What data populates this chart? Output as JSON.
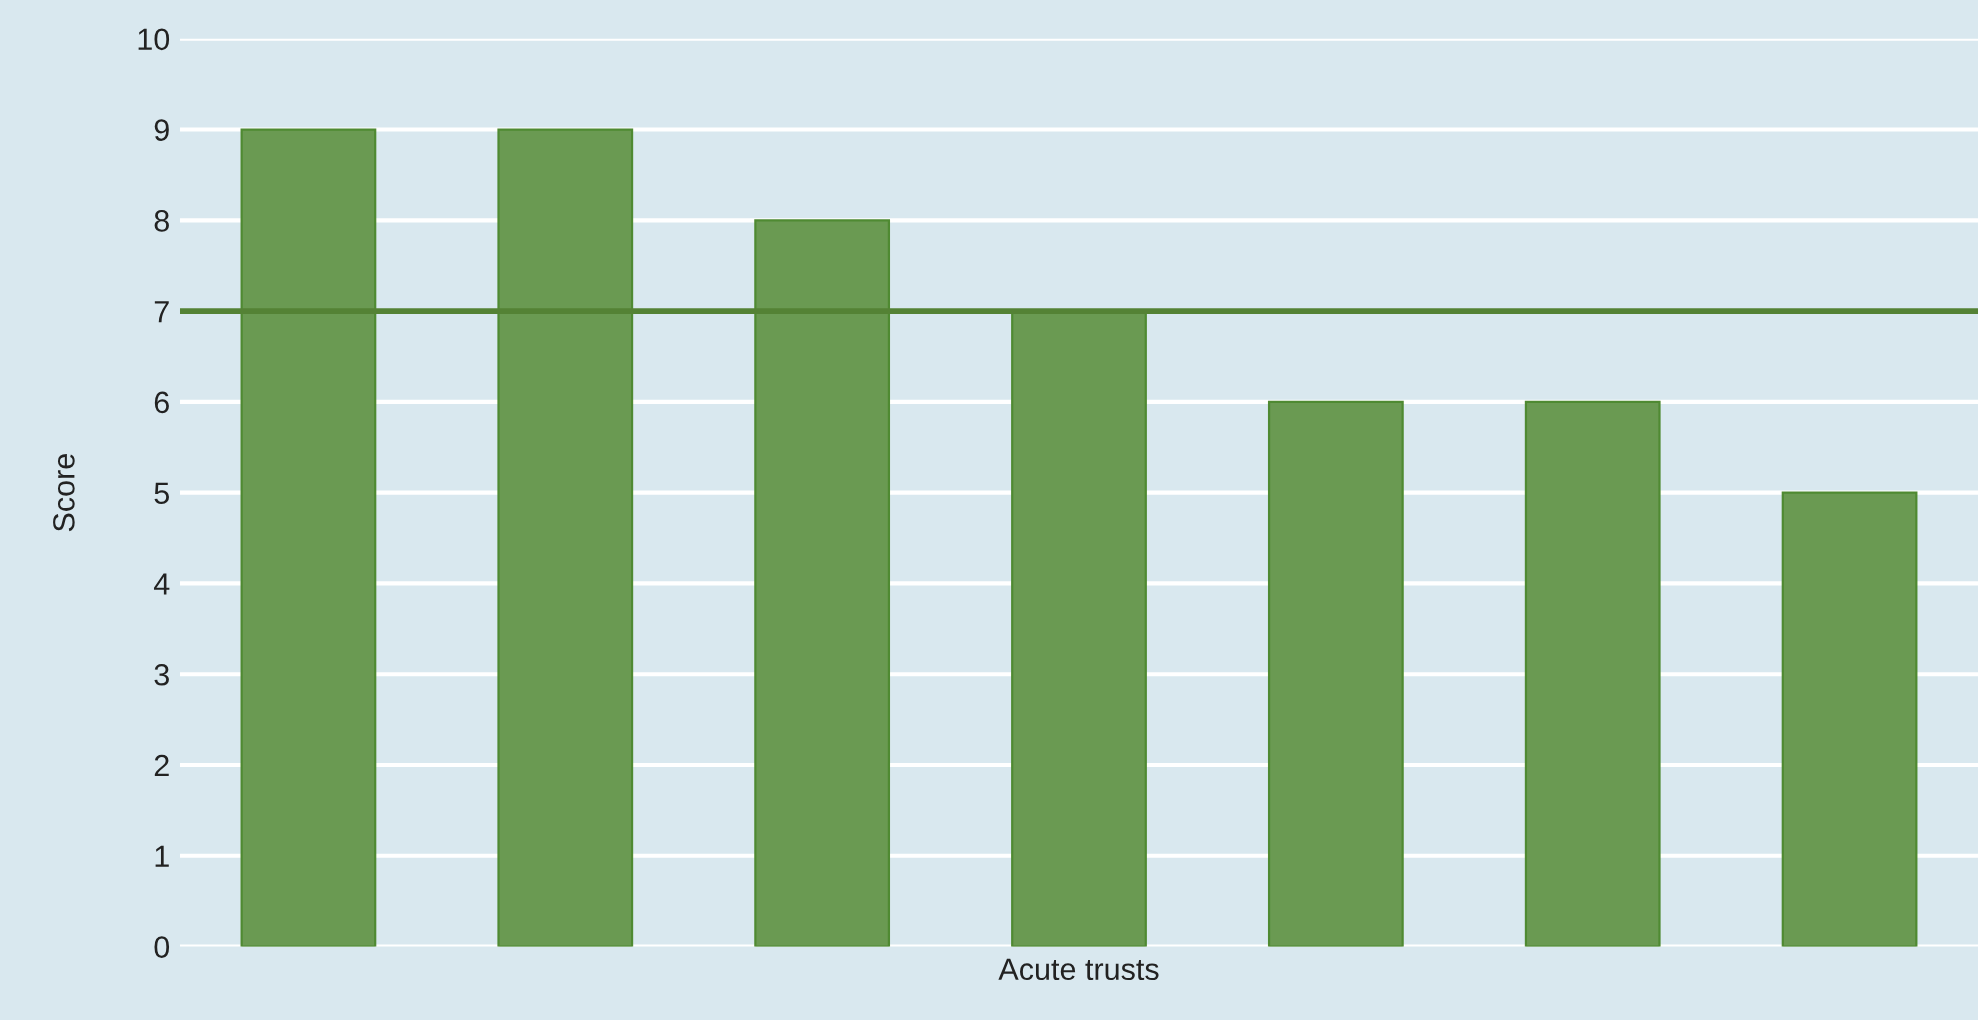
{
  "chart_data": {
    "type": "bar",
    "xlabel": "Acute trusts",
    "ylabel": "Score",
    "categories": [
      null,
      null,
      null,
      null,
      null,
      null,
      null
    ],
    "values": [
      9,
      9,
      8,
      7,
      6,
      6,
      5
    ],
    "color": "#6a9a52",
    "ylim": [
      0,
      10
    ],
    "yticks": [
      0,
      1,
      2,
      3,
      4,
      5,
      6,
      7,
      8,
      9,
      10
    ],
    "grid": "y",
    "tick_labels": "y",
    "legend": false,
    "ref_lines": [
      {
        "axis": "y",
        "value": 7,
        "color": "#548235"
      }
    ]
  }
}
